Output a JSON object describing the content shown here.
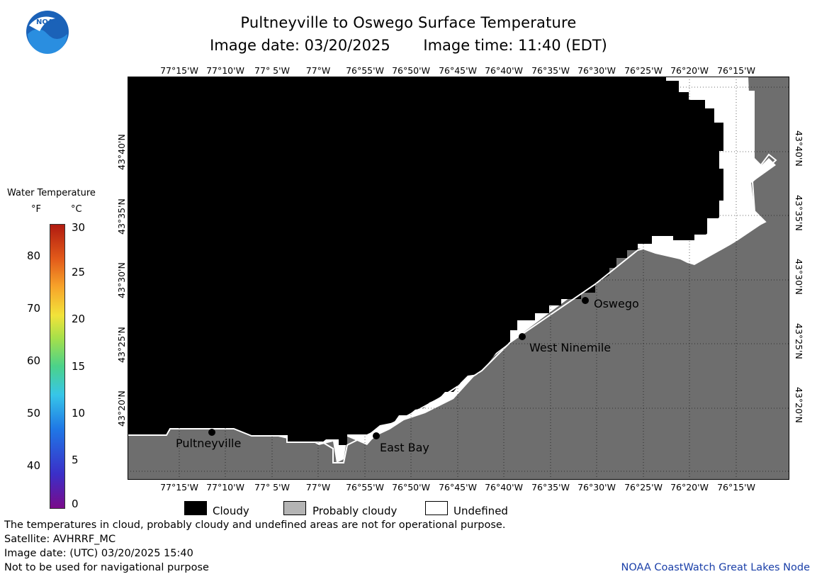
{
  "header": {
    "title": "Pultneyville to Oswego Surface Temperature",
    "image_date": "Image date: 03/20/2025",
    "image_time": "Image time: 11:40 (EDT)"
  },
  "logo": {
    "text": "NOAA",
    "icon": "noaa-logo-icon"
  },
  "map": {
    "lon_labels": [
      "77°15'W",
      "77°10'W",
      "77° 5'W",
      "77°W",
      "76°55'W",
      "76°50'W",
      "76°45'W",
      "76°40'W",
      "76°35'W",
      "76°30'W",
      "76°25'W",
      "76°20'W",
      "76°15'W"
    ],
    "lat_labels": [
      "43°40'N",
      "43°35'N",
      "43°30'N",
      "43°25'N",
      "43°20'N"
    ],
    "places": [
      {
        "name": "Pultneyville"
      },
      {
        "name": "East Bay"
      },
      {
        "name": "West Ninemile"
      },
      {
        "name": "Oswego"
      }
    ],
    "colors": {
      "cloudy": "#000000",
      "probably_cloudy": "#6e6e6e",
      "undefined": "#ffffff"
    }
  },
  "colorbar": {
    "title": "Water Temperature",
    "unit_f": "°F",
    "unit_c": "°C",
    "f_ticks": [
      "80",
      "70",
      "60",
      "50",
      "40"
    ],
    "c_ticks": [
      "30",
      "25",
      "20",
      "15",
      "10",
      "5",
      "0"
    ]
  },
  "legend": {
    "cloudy": "Cloudy",
    "probably_cloudy": "Probably cloudy",
    "undefined": "Undefined"
  },
  "footer": {
    "note": "The temperatures in cloud, probably cloudy and undefined areas are not for operational purpose.",
    "satellite": "Satellite: AVHRRF_MC",
    "utc_date": "Image date: (UTC) 03/20/2025  15:40",
    "nav_warning": "Not to be used for navigational purpose",
    "credit": "NOAA CoastWatch Great Lakes Node"
  }
}
